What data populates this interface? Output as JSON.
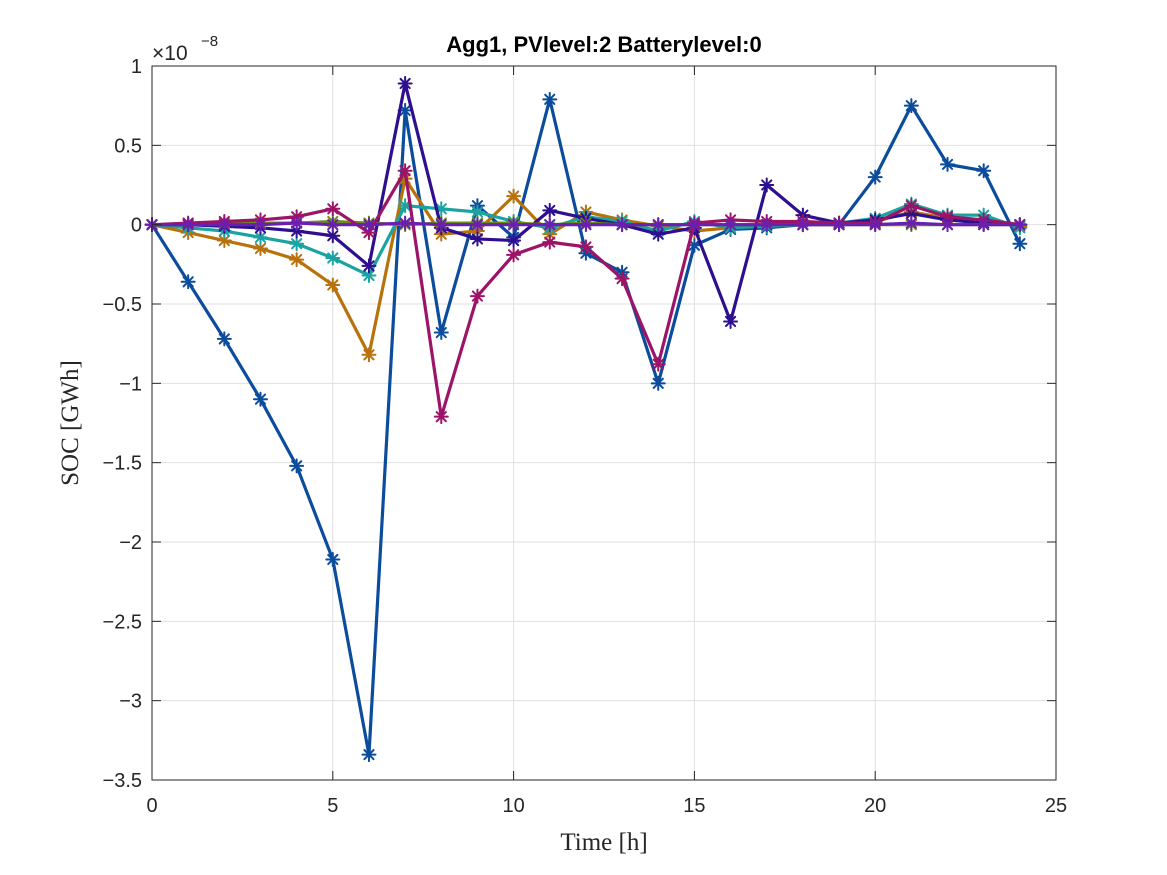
{
  "chart_data": {
    "type": "line",
    "title": "Agg1, PVlevel:2 Batterylevel:0",
    "xlabel": "Time [h]",
    "ylabel": "SOC [GWh]",
    "y_exponent_base": "×10",
    "y_exponent_power": "−8",
    "xlim": [
      0,
      25
    ],
    "ylim": [
      -3.5,
      1
    ],
    "xticks": [
      0,
      5,
      10,
      15,
      20,
      25
    ],
    "xtick_labels": [
      "0",
      "5",
      "10",
      "15",
      "20",
      "25"
    ],
    "yticks": [
      -3.5,
      -3,
      -2.5,
      -2,
      -1.5,
      -1,
      -0.5,
      0,
      0.5,
      1
    ],
    "ytick_labels": [
      "−3.5",
      "−3",
      "−2.5",
      "−2",
      "−1.5",
      "−1",
      "−0.5",
      "0",
      "0.5",
      "1"
    ],
    "grid": true,
    "marker": "asterisk",
    "x": [
      0,
      1,
      2,
      3,
      4,
      5,
      6,
      7,
      8,
      9,
      10,
      11,
      12,
      13,
      14,
      15,
      16,
      17,
      18,
      19,
      20,
      21,
      22,
      23,
      24
    ],
    "series": [
      {
        "color": "#0b4c9c",
        "values": [
          0,
          -0.36,
          -0.72,
          -1.1,
          -1.52,
          -2.11,
          -3.34,
          0.72,
          -0.68,
          0.12,
          -0.08,
          0.79,
          -0.18,
          -0.3,
          -1.0,
          -0.13,
          -0.03,
          -0.02,
          0.0,
          0.0,
          0.3,
          0.75,
          0.38,
          0.34,
          -0.12
        ]
      },
      {
        "color": "#b8720c",
        "values": [
          0,
          -0.05,
          -0.1,
          -0.15,
          -0.22,
          -0.38,
          -0.82,
          0.29,
          -0.06,
          -0.04,
          0.18,
          -0.06,
          0.08,
          0.03,
          -0.01,
          -0.04,
          -0.02,
          0.0,
          0.0,
          0.0,
          0.02,
          0.08,
          0.04,
          0.03,
          -0.01
        ]
      },
      {
        "color": "#1aa3a0",
        "values": [
          0,
          -0.02,
          -0.04,
          -0.08,
          -0.12,
          -0.21,
          -0.32,
          0.12,
          0.1,
          0.08,
          0.02,
          -0.02,
          0.05,
          0.02,
          -0.04,
          0.02,
          -0.02,
          -0.01,
          0.0,
          0.01,
          0.04,
          0.13,
          0.06,
          0.06,
          -0.02
        ]
      },
      {
        "color": "#2e0f8f",
        "values": [
          0,
          0.0,
          -0.01,
          -0.02,
          -0.04,
          -0.07,
          -0.26,
          0.89,
          -0.02,
          -0.09,
          -0.1,
          0.09,
          0.04,
          0.0,
          -0.06,
          -0.02,
          -0.61,
          0.25,
          0.06,
          0.01,
          0.03,
          0.07,
          0.03,
          0.01,
          0.0
        ]
      },
      {
        "color": "#6b8c1a",
        "values": [
          0,
          0.0,
          0.01,
          0.01,
          0.01,
          0.02,
          0.01,
          0.0,
          0.01,
          0.01,
          0.01,
          0.0,
          0.01,
          0.0,
          0.0,
          0.0,
          0.0,
          0.0,
          0.0,
          0.0,
          0.0,
          0.0,
          0.0,
          0.0,
          0.0
        ]
      },
      {
        "color": "#9c1467",
        "values": [
          0,
          0.01,
          0.02,
          0.03,
          0.05,
          0.1,
          -0.05,
          0.34,
          -1.21,
          -0.45,
          -0.19,
          -0.11,
          -0.14,
          -0.34,
          -0.88,
          0.01,
          0.03,
          0.02,
          0.02,
          0.01,
          0.01,
          0.12,
          0.05,
          0.03,
          0.0
        ]
      },
      {
        "color": "#6a1fb0",
        "values": [
          0,
          0.0,
          0.0,
          0.0,
          0.01,
          0.0,
          0.0,
          0.01,
          0.0,
          0.0,
          0.0,
          0.0,
          0.0,
          0.0,
          0.0,
          0.0,
          0.0,
          0.0,
          0.0,
          0.0,
          0.0,
          0.01,
          0.0,
          0.0,
          0.0
        ]
      }
    ]
  }
}
